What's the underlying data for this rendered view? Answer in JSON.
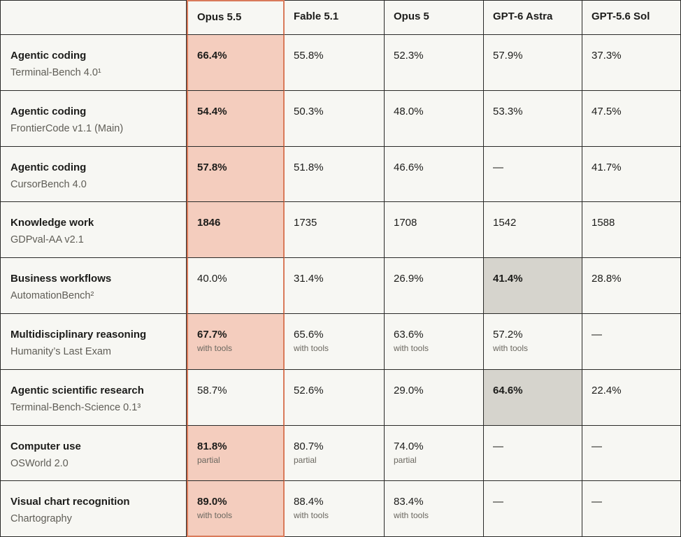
{
  "chart_data": {
    "type": "table",
    "columns": [
      "",
      "Opus 5.5",
      "Fable 5.1",
      "Opus 5",
      "GPT-6 Astra",
      "GPT-5.6 Sol"
    ],
    "rows": [
      {
        "category": "Agentic coding",
        "benchmark": "Terminal-Bench 4.0¹",
        "cells": [
          {
            "v": "66.4%",
            "bold": true,
            "hl": "opus"
          },
          {
            "v": "55.8%"
          },
          {
            "v": "52.3%"
          },
          {
            "v": "57.9%"
          },
          {
            "v": "37.3%"
          }
        ]
      },
      {
        "category": "Agentic coding",
        "benchmark": "FrontierCode v1.1 (Main)",
        "cells": [
          {
            "v": "54.4%",
            "bold": true,
            "hl": "opus"
          },
          {
            "v": "50.3%"
          },
          {
            "v": "48.0%"
          },
          {
            "v": "53.3%"
          },
          {
            "v": "47.5%"
          }
        ]
      },
      {
        "category": "Agentic coding",
        "benchmark": "CursorBench 4.0",
        "cells": [
          {
            "v": "57.8%",
            "bold": true,
            "hl": "opus"
          },
          {
            "v": "51.8%"
          },
          {
            "v": "46.6%"
          },
          {
            "v": "—"
          },
          {
            "v": "41.7%"
          }
        ]
      },
      {
        "category": "Knowledge work",
        "benchmark": "GDPval-AA v2.1",
        "cells": [
          {
            "v": "1846",
            "bold": true,
            "hl": "opus"
          },
          {
            "v": "1735"
          },
          {
            "v": "1708"
          },
          {
            "v": "1542"
          },
          {
            "v": "1588"
          }
        ]
      },
      {
        "category": "Business workflows",
        "benchmark": "AutomationBench²",
        "cells": [
          {
            "v": "40.0%"
          },
          {
            "v": "31.4%"
          },
          {
            "v": "26.9%"
          },
          {
            "v": "41.4%",
            "bold": true,
            "hl": "grey"
          },
          {
            "v": "28.8%"
          }
        ]
      },
      {
        "category": "Multidisciplinary reasoning",
        "benchmark": "Humanity’s Last Exam",
        "cells": [
          {
            "v": "67.7%",
            "bold": true,
            "hl": "opus",
            "note": "with tools"
          },
          {
            "v": "65.6%",
            "note": "with tools"
          },
          {
            "v": "63.6%",
            "note": "with tools"
          },
          {
            "v": "57.2%",
            "note": "with tools"
          },
          {
            "v": "—"
          }
        ]
      },
      {
        "category": "Agentic scientific research",
        "benchmark": "Terminal-Bench-Science 0.1³",
        "cells": [
          {
            "v": "58.7%"
          },
          {
            "v": "52.6%"
          },
          {
            "v": "29.0%"
          },
          {
            "v": "64.6%",
            "bold": true,
            "hl": "grey"
          },
          {
            "v": "22.4%"
          }
        ]
      },
      {
        "category": "Computer use",
        "benchmark": "OSWorld 2.0",
        "cells": [
          {
            "v": "81.8%",
            "bold": true,
            "hl": "opus",
            "note": "partial"
          },
          {
            "v": "80.7%",
            "note": "partial"
          },
          {
            "v": "74.0%",
            "note": "partial"
          },
          {
            "v": "—"
          },
          {
            "v": "—"
          }
        ]
      },
      {
        "category": "Visual chart recognition",
        "benchmark": "Chartography",
        "cells": [
          {
            "v": "89.0%",
            "bold": true,
            "hl": "opus",
            "note": "with tools"
          },
          {
            "v": "88.4%",
            "note": "with tools"
          },
          {
            "v": "83.4%",
            "note": "with tools"
          },
          {
            "v": "—"
          },
          {
            "v": "—"
          }
        ]
      }
    ],
    "colors": {
      "highlight_opus": "#f4cdbe",
      "highlight_opus_border": "#d97a5a",
      "highlight_best_other": "#d6d4cd"
    }
  }
}
